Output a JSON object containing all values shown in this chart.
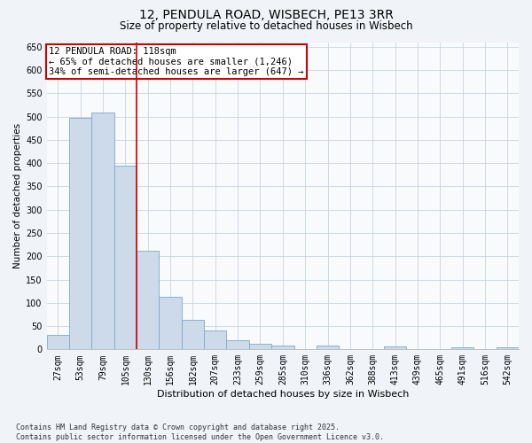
{
  "title_line1": "12, PENDULA ROAD, WISBECH, PE13 3RR",
  "title_line2": "Size of property relative to detached houses in Wisbech",
  "xlabel": "Distribution of detached houses by size in Wisbech",
  "ylabel": "Number of detached properties",
  "categories": [
    "27sqm",
    "53sqm",
    "79sqm",
    "105sqm",
    "130sqm",
    "156sqm",
    "182sqm",
    "207sqm",
    "233sqm",
    "259sqm",
    "285sqm",
    "310sqm",
    "336sqm",
    "362sqm",
    "388sqm",
    "413sqm",
    "439sqm",
    "465sqm",
    "491sqm",
    "516sqm",
    "542sqm"
  ],
  "values": [
    32,
    497,
    508,
    395,
    212,
    113,
    63,
    40,
    19,
    12,
    9,
    0,
    8,
    0,
    0,
    6,
    0,
    0,
    4,
    0,
    4
  ],
  "bar_color": "#ccdaea",
  "bar_edge_color": "#7aaac8",
  "red_line_x": 3.5,
  "annotation_title": "12 PENDULA ROAD: 118sqm",
  "annotation_line1": "← 65% of detached houses are smaller (1,246)",
  "annotation_line2": "34% of semi-detached houses are larger (647) →",
  "annotation_box_color": "#ffffff",
  "annotation_box_edge": "#cc0000",
  "red_line_color": "#cc0000",
  "ylim": [
    0,
    660
  ],
  "yticks": [
    0,
    50,
    100,
    150,
    200,
    250,
    300,
    350,
    400,
    450,
    500,
    550,
    600,
    650
  ],
  "footer_line1": "Contains HM Land Registry data © Crown copyright and database right 2025.",
  "footer_line2": "Contains public sector information licensed under the Open Government Licence v3.0.",
  "bg_color": "#f0f4f8",
  "plot_bg_color": "#f8fafc",
  "grid_color": "#c8d4e0",
  "title_fontsize": 10,
  "subtitle_fontsize": 8.5,
  "xlabel_fontsize": 8,
  "ylabel_fontsize": 7.5,
  "tick_fontsize": 7,
  "annot_fontsize": 7.5,
  "footer_fontsize": 6
}
